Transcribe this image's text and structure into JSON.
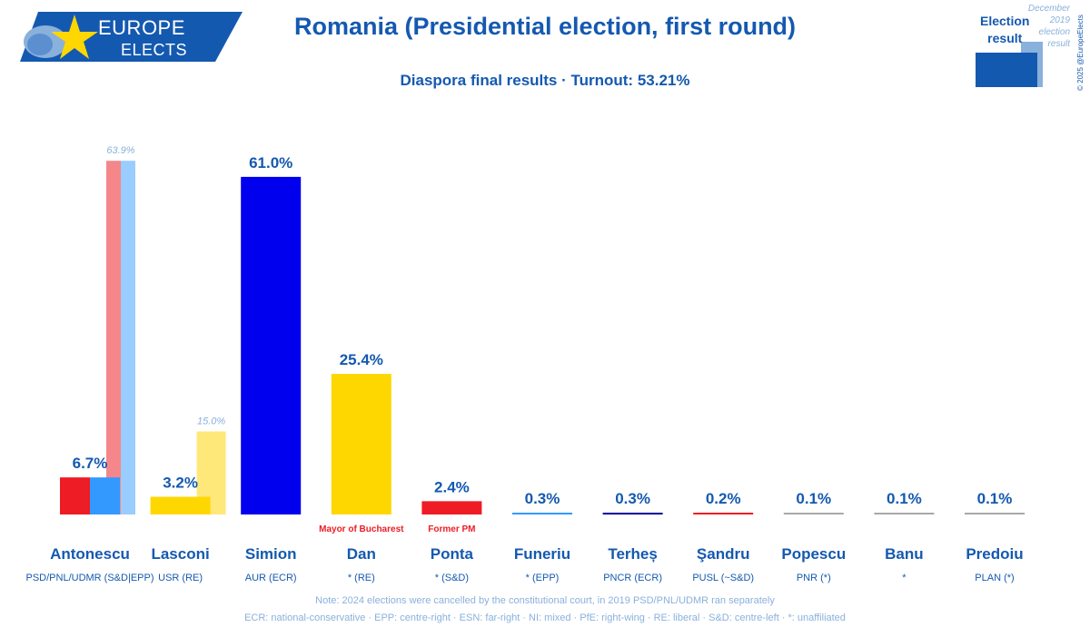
{
  "header": {
    "title": "Romania (Presidential election, first round)",
    "subtitle": "Diaspora final results · Turnout: 53.21%",
    "logo_line1": "EUROPE",
    "logo_line2": "ELECTS"
  },
  "legend": {
    "result_line1": "Election",
    "result_line2": "result",
    "prev_line1": "December 2019",
    "prev_line2": "election",
    "prev_line3": "result",
    "copyright": "© 2025 @EuropeElects"
  },
  "notes": {
    "line1": "Note: 2024 elections were cancelled by the constitutional court, in 2019 PSD/PNL/UDMR ran separately",
    "line2": "ECR: national-conservative · EPP: centre-right · ESN: far-right · NI: mixed · PfE: right-wing · RE: liberal · S&D: centre-left · *: unaffiliated"
  },
  "chart_data": {
    "type": "bar",
    "ylim": [
      0,
      65
    ],
    "categories": [
      "Antonescu",
      "Lasconi",
      "Simion",
      "Dan",
      "Ponta",
      "Funeriu",
      "Terheș",
      "Şandru",
      "Popescu",
      "Banu",
      "Predoiu"
    ],
    "parties": [
      "PSD/PNL/UDMR (S&D|EPP)",
      "USR (RE)",
      "AUR (ECR)",
      "* (RE)",
      "* (S&D)",
      "* (EPP)",
      "PNCR (ECR)",
      "PUSL (~S&D)",
      "PNR (*)",
      "*",
      "PLAN (*)"
    ],
    "values": [
      6.7,
      3.2,
      61.0,
      25.4,
      2.4,
      0.3,
      0.3,
      0.2,
      0.1,
      0.1,
      0.1
    ],
    "labels": [
      "6.7%",
      "3.2%",
      "61.0%",
      "25.4%",
      "2.4%",
      "0.3%",
      "0.3%",
      "0.2%",
      "0.1%",
      "0.1%",
      "0.1%"
    ],
    "colors": [
      [
        "#ee1c25",
        "#3399ff"
      ],
      [
        "#ffd700"
      ],
      [
        "#0000ee"
      ],
      [
        "#ffd700"
      ],
      [
        "#ee1c25"
      ],
      [
        "#3399ff"
      ],
      [
        "#000099"
      ],
      [
        "#ee1c25"
      ],
      [
        "#a8a8a8"
      ],
      [
        "#a8a8a8"
      ],
      [
        "#a8a8a8"
      ]
    ],
    "previous": [
      {
        "index": 0,
        "value": 63.9,
        "label": "63.9%",
        "colors": [
          "#f5878a",
          "#99ccff"
        ]
      },
      {
        "index": 1,
        "value": 15.0,
        "label": "15.0%",
        "colors": [
          "#ffe87a"
        ]
      }
    ],
    "annotations": [
      {
        "index": 3,
        "text": "Mayor of Bucharest"
      },
      {
        "index": 4,
        "text": "Former PM"
      }
    ]
  }
}
